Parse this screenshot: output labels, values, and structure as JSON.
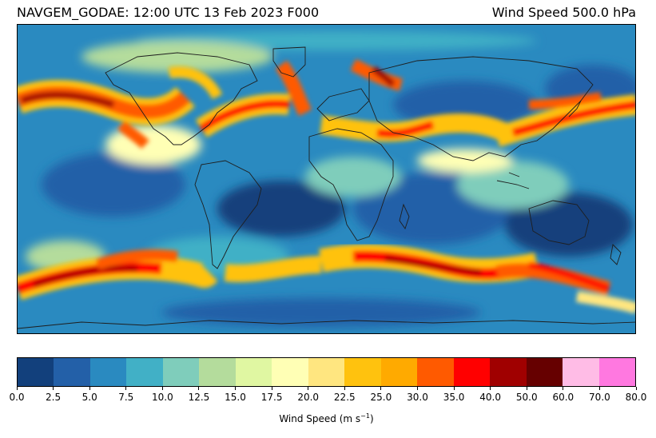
{
  "header": {
    "title_left": "NAVGEM_GODAE: 12:00 UTC 13 Feb 2023 F000",
    "title_right": "Wind Speed 500.0 hPa"
  },
  "colorbar": {
    "label_main": "Wind Speed (m s",
    "label_exp": "−1",
    "label_close": ")",
    "levels": [
      0.0,
      2.5,
      5.0,
      7.5,
      10.0,
      12.5,
      15.0,
      17.5,
      20.0,
      22.5,
      25.0,
      30.0,
      35.0,
      40.0,
      50.0,
      60.0,
      70.0,
      80.0
    ],
    "tick_labels": [
      "0.0",
      "2.5",
      "5.0",
      "7.5",
      "10.0",
      "12.5",
      "15.0",
      "17.5",
      "20.0",
      "22.5",
      "25.0",
      "30.0",
      "35.0",
      "40.0",
      "50.0",
      "60.0",
      "70.0",
      "80.0"
    ],
    "colors": [
      "#12407c",
      "#2360a8",
      "#2a8ac0",
      "#41b0c6",
      "#7fcdbb",
      "#b4dc9c",
      "#e0f7a2",
      "#ffffb5",
      "#ffe680",
      "#ffc20e",
      "#ffaa00",
      "#ff5a00",
      "#ff0000",
      "#a00000",
      "#660000",
      "#ffbce6",
      "#ff78e0"
    ]
  },
  "map": {
    "projection": "plate carree",
    "background_color": "#2a8ac0",
    "coastline_color": "#1e1e1e"
  }
}
